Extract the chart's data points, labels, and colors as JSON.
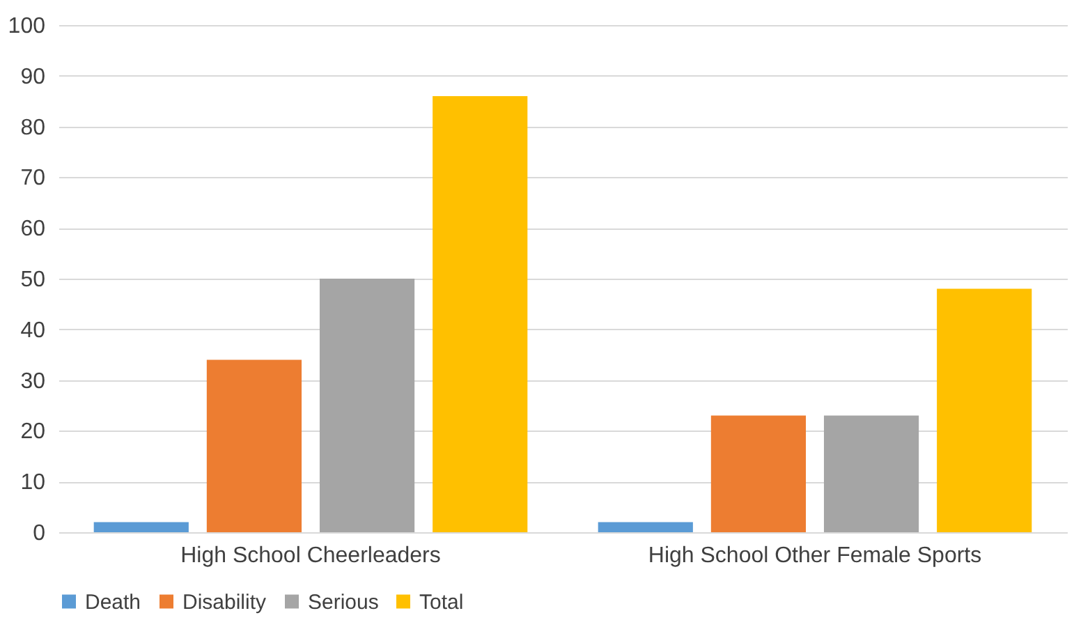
{
  "chart_data": {
    "type": "bar",
    "categories": [
      "High School Cheerleaders",
      "High School Other Female Sports"
    ],
    "series": [
      {
        "name": "Death",
        "color": "#5b9bd5",
        "values": [
          2,
          2
        ]
      },
      {
        "name": "Disability",
        "color": "#ed7d31",
        "values": [
          34,
          23
        ]
      },
      {
        "name": "Serious",
        "color": "#a5a5a5",
        "values": [
          50,
          23
        ]
      },
      {
        "name": "Total",
        "color": "#ffc000",
        "values": [
          86,
          48
        ]
      }
    ],
    "ylim": [
      0,
      100
    ],
    "yticks": [
      0,
      10,
      20,
      30,
      40,
      50,
      60,
      70,
      80,
      90,
      100
    ],
    "grid": "y",
    "legend": "bottom"
  }
}
